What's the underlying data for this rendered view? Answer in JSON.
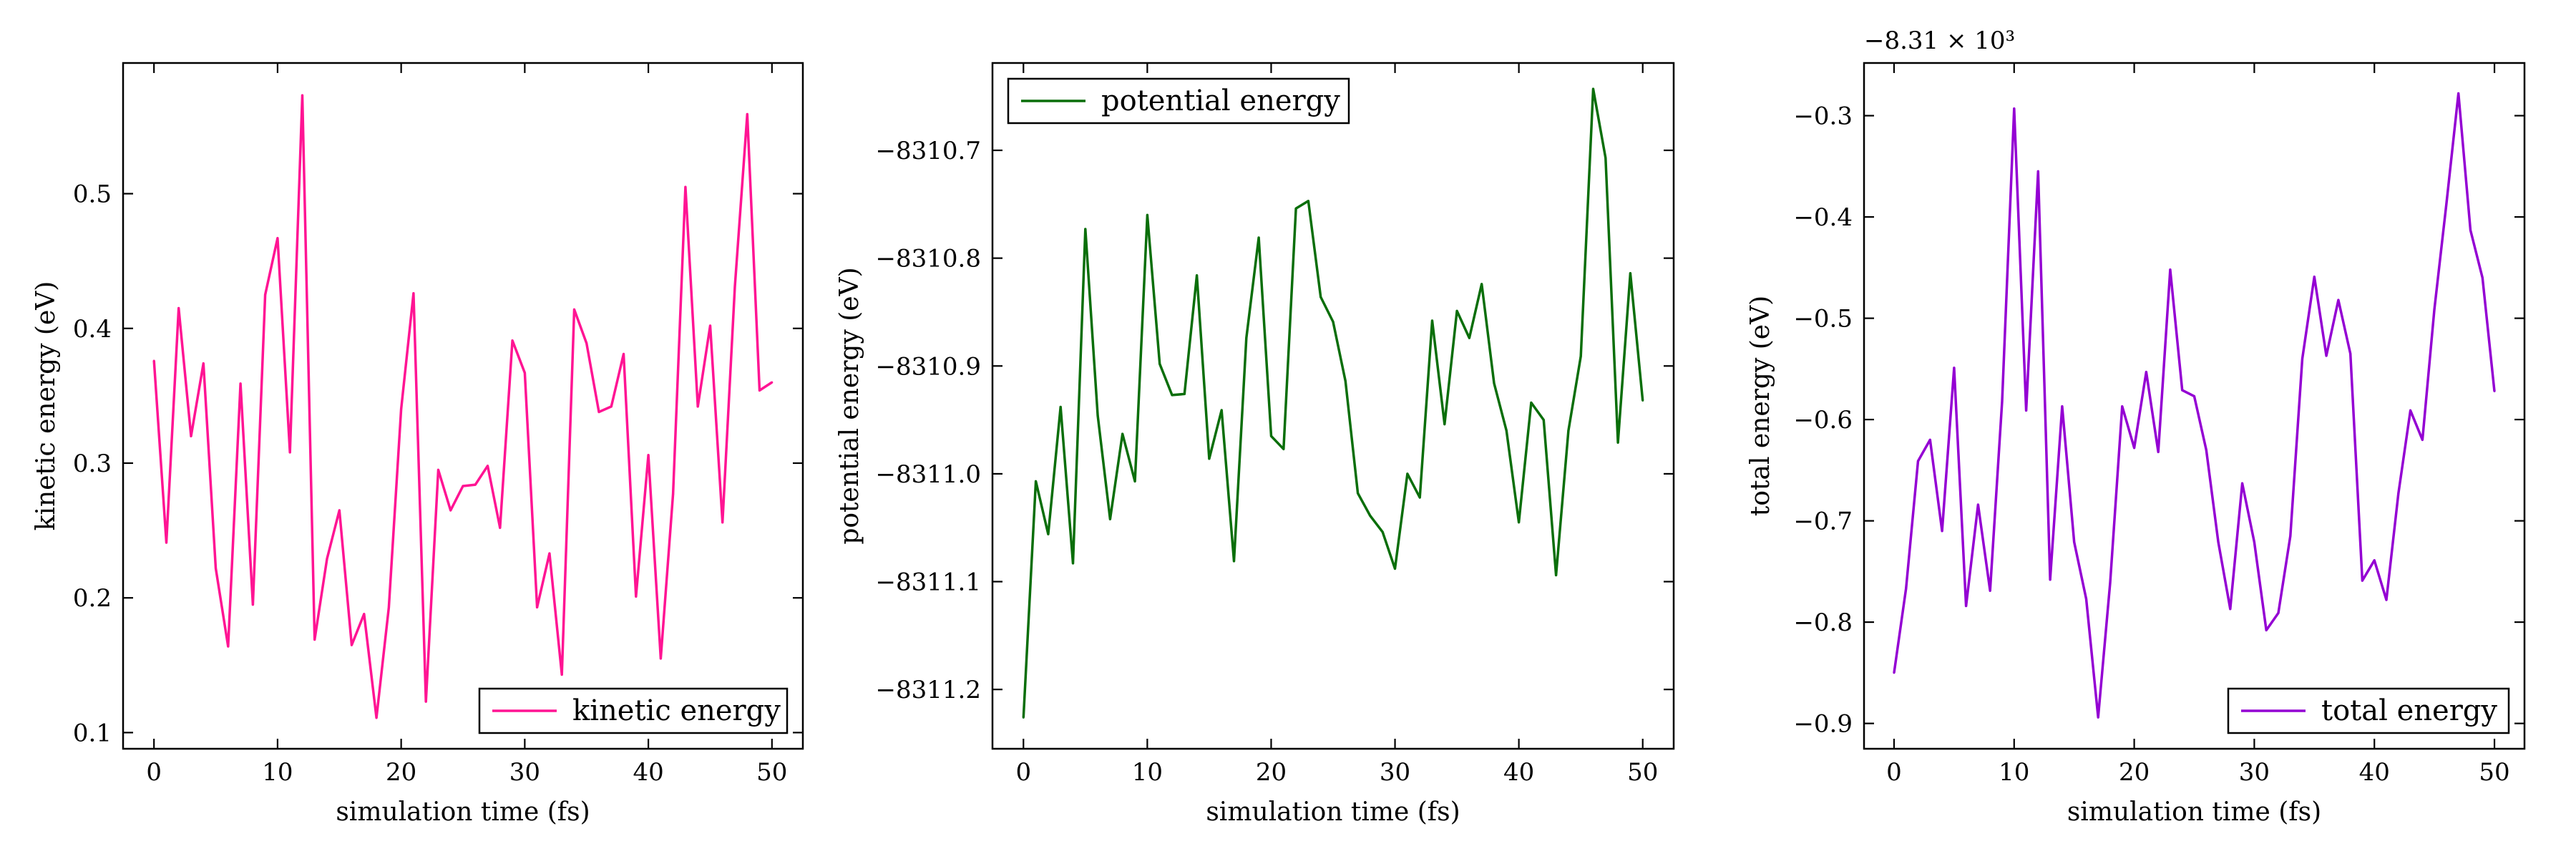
{
  "chart_data": [
    {
      "type": "line",
      "xlabel": "simulation time (fs)",
      "ylabel": "kinetic energy (eV)",
      "xlim": [
        -2.5,
        52.5
      ],
      "ylim": [
        0.088,
        0.597
      ],
      "xticks": [
        0,
        10,
        20,
        30,
        40,
        50
      ],
      "xtick_labels": [
        "0",
        "10",
        "20",
        "30",
        "40",
        "50"
      ],
      "yticks": [
        0.1,
        0.2,
        0.3,
        0.4,
        0.5
      ],
      "ytick_labels": [
        "0.1",
        "0.2",
        "0.3",
        "0.4",
        "0.5"
      ],
      "offset_label": "",
      "legend_position": "lower-right",
      "grid": false,
      "series": [
        {
          "name": "kinetic energy",
          "color": "#ff1493",
          "x": [
            0,
            1,
            2,
            3,
            4,
            5,
            6,
            7,
            8,
            9,
            10,
            11,
            12,
            13,
            14,
            15,
            16,
            17,
            18,
            19,
            20,
            21,
            22,
            23,
            24,
            25,
            26,
            27,
            28,
            29,
            30,
            31,
            32,
            33,
            34,
            35,
            36,
            37,
            38,
            39,
            40,
            41,
            42,
            43,
            44,
            45,
            46,
            47,
            48,
            49,
            50
          ],
          "y": [
            0.376,
            0.241,
            0.415,
            0.32,
            0.374,
            0.222,
            0.164,
            0.359,
            0.195,
            0.425,
            0.467,
            0.308,
            0.573,
            0.169,
            0.229,
            0.265,
            0.165,
            0.188,
            0.111,
            0.193,
            0.34,
            0.426,
            0.123,
            0.295,
            0.265,
            0.283,
            0.284,
            0.298,
            0.252,
            0.391,
            0.367,
            0.193,
            0.233,
            0.143,
            0.414,
            0.389,
            0.338,
            0.342,
            0.381,
            0.201,
            0.306,
            0.155,
            0.277,
            0.505,
            0.342,
            0.402,
            0.256,
            0.431,
            0.559,
            0.354,
            0.36
          ]
        }
      ]
    },
    {
      "type": "line",
      "xlabel": "simulation time (fs)",
      "ylabel": "potential energy (eV)",
      "xlim": [
        -2.5,
        52.5
      ],
      "ylim": [
        -8311.255,
        -8310.619
      ],
      "xticks": [
        0,
        10,
        20,
        30,
        40,
        50
      ],
      "xtick_labels": [
        "0",
        "10",
        "20",
        "30",
        "40",
        "50"
      ],
      "yticks": [
        -8311.2,
        -8311.1,
        -8311.0,
        -8310.9,
        -8310.8,
        -8310.7
      ],
      "ytick_labels": [
        "−8311.2",
        "−8311.1",
        "−8311.0",
        "−8310.9",
        "−8310.8",
        "−8310.7"
      ],
      "offset_label": "",
      "legend_position": "upper-left",
      "grid": false,
      "series": [
        {
          "name": "potential energy",
          "color": "#0a6e0a",
          "x": [
            0,
            1,
            2,
            3,
            4,
            5,
            6,
            7,
            8,
            9,
            10,
            11,
            12,
            13,
            14,
            15,
            16,
            17,
            18,
            19,
            20,
            21,
            22,
            23,
            24,
            25,
            26,
            27,
            28,
            29,
            30,
            31,
            32,
            33,
            34,
            35,
            36,
            37,
            38,
            39,
            40,
            41,
            42,
            43,
            44,
            45,
            46,
            47,
            48,
            49,
            50
          ],
          "y": [
            -8311.226,
            -8311.007,
            -8311.056,
            -8310.938,
            -8311.083,
            -8310.773,
            -8310.946,
            -8311.042,
            -8310.963,
            -8311.007,
            -8310.76,
            -8310.898,
            -8310.927,
            -8310.926,
            -8310.816,
            -8310.986,
            -8310.941,
            -8311.081,
            -8310.874,
            -8310.781,
            -8310.965,
            -8310.977,
            -8310.754,
            -8310.747,
            -8310.836,
            -8310.859,
            -8310.914,
            -8311.018,
            -8311.039,
            -8311.054,
            -8311.088,
            -8311.0,
            -8311.022,
            -8310.858,
            -8310.954,
            -8310.849,
            -8310.874,
            -8310.824,
            -8310.916,
            -8310.96,
            -8311.045,
            -8310.934,
            -8310.95,
            -8311.094,
            -8310.96,
            -8310.891,
            -8310.643,
            -8310.707,
            -8310.971,
            -8310.814,
            -8310.932
          ]
        }
      ]
    },
    {
      "type": "line",
      "xlabel": "simulation time (fs)",
      "ylabel": "total energy (eV)",
      "xlim": [
        -2.5,
        52.5
      ],
      "ylim": [
        -0.925,
        -0.248
      ],
      "xticks": [
        0,
        10,
        20,
        30,
        40,
        50
      ],
      "xtick_labels": [
        "0",
        "10",
        "20",
        "30",
        "40",
        "50"
      ],
      "yticks": [
        -0.9,
        -0.8,
        -0.7,
        -0.6,
        -0.5,
        -0.4,
        -0.3
      ],
      "ytick_labels": [
        "−0.9",
        "−0.8",
        "−0.7",
        "−0.6",
        "−0.5",
        "−0.4",
        "−0.3"
      ],
      "offset_label": "−8.31 × 10³",
      "legend_position": "lower-right",
      "grid": false,
      "series": [
        {
          "name": "total energy",
          "color": "#9400d3",
          "x": [
            0,
            1,
            2,
            3,
            4,
            5,
            6,
            7,
            8,
            9,
            10,
            11,
            12,
            13,
            14,
            15,
            16,
            17,
            18,
            19,
            20,
            21,
            22,
            23,
            24,
            25,
            26,
            27,
            28,
            29,
            30,
            31,
            32,
            33,
            34,
            35,
            36,
            37,
            38,
            39,
            40,
            41,
            42,
            43,
            44,
            45,
            46,
            47,
            48,
            49,
            50
          ],
          "y": [
            -0.85,
            -0.767,
            -0.641,
            -0.62,
            -0.71,
            -0.549,
            -0.784,
            -0.684,
            -0.769,
            -0.582,
            -0.293,
            -0.591,
            -0.355,
            -0.758,
            -0.587,
            -0.721,
            -0.777,
            -0.894,
            -0.761,
            -0.587,
            -0.628,
            -0.553,
            -0.632,
            -0.452,
            -0.571,
            -0.577,
            -0.63,
            -0.721,
            -0.787,
            -0.663,
            -0.721,
            -0.808,
            -0.791,
            -0.715,
            -0.54,
            -0.459,
            -0.537,
            -0.482,
            -0.535,
            -0.759,
            -0.739,
            -0.778,
            -0.673,
            -0.591,
            -0.62,
            -0.491,
            -0.387,
            -0.278,
            -0.413,
            -0.46,
            -0.572
          ]
        }
      ]
    }
  ]
}
